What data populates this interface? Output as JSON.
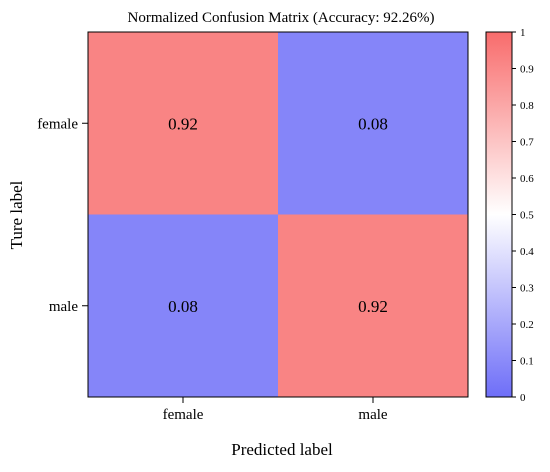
{
  "chart_data": {
    "type": "heatmap",
    "title": "Normalized Confusion Matrix (Accuracy: 92.26%)",
    "xlabel": "Predicted label",
    "ylabel": "Ture label",
    "x_categories": [
      "female",
      "male"
    ],
    "y_categories": [
      "female",
      "male"
    ],
    "values": [
      [
        0.92,
        0.08
      ],
      [
        0.08,
        0.92
      ]
    ],
    "cell_labels": [
      [
        "0.92",
        "0.08"
      ],
      [
        "0.08",
        "0.92"
      ]
    ],
    "colorbar": {
      "range": [
        0,
        1
      ],
      "ticks": [
        0,
        0.1,
        0.2,
        0.3,
        0.4,
        0.5,
        0.6,
        0.7,
        0.8,
        0.9,
        1
      ],
      "tick_labels": [
        "0",
        "0.1",
        "0.2",
        "0.3",
        "0.4",
        "0.5",
        "0.6",
        "0.7",
        "0.8",
        "0.9",
        "1"
      ],
      "color_low": "#6e6ef8",
      "color_mid": "#ffffff",
      "color_high": "#f86c6c"
    },
    "grid": false
  }
}
